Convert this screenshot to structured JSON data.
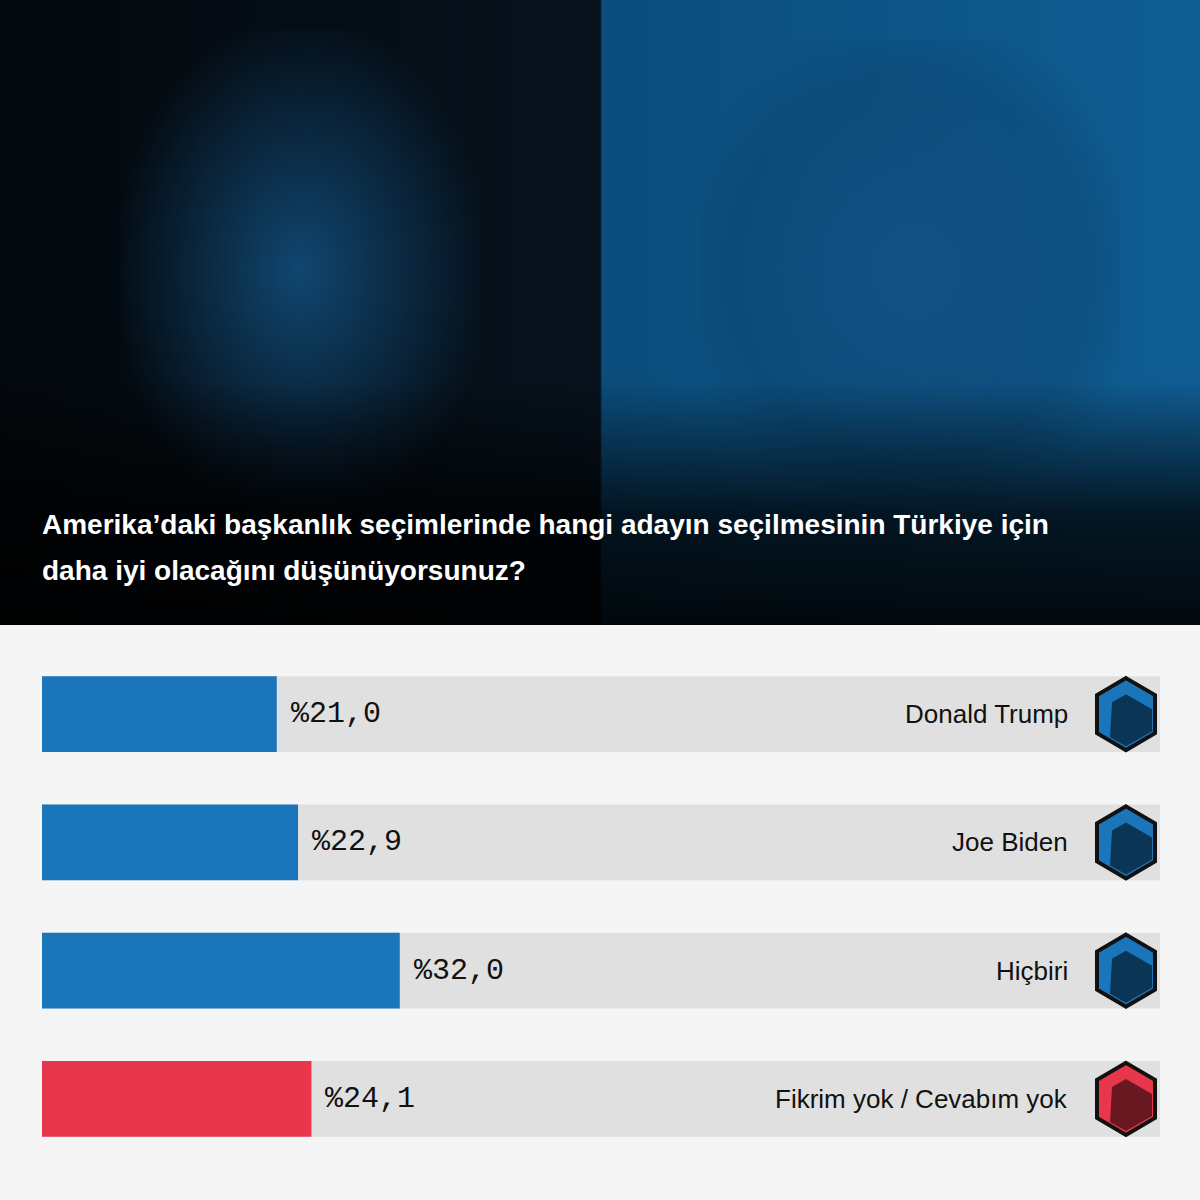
{
  "chart_data": {
    "type": "bar",
    "orientation": "horizontal",
    "title": "Amerika’daki başkanlık seçimlerinde hangi adayın seçilmesinin Türkiye için daha iyi olacağını düşünüyorsunuz?",
    "categories": [
      "Donald Trump",
      "Joe Biden",
      "Hiçbiri",
      "Fikrim yok / Cevabım yok"
    ],
    "values": [
      21.0,
      22.9,
      32.0,
      24.1
    ],
    "value_labels": [
      "%21,0",
      "%22,9",
      "%32,0",
      "%24,1"
    ],
    "colors": [
      "#1a75bb",
      "#1a75bb",
      "#1a75bb",
      "#e8374a"
    ],
    "xlim": [
      0,
      100
    ],
    "tick_labels": false,
    "data_labels": true,
    "grid": false
  }
}
